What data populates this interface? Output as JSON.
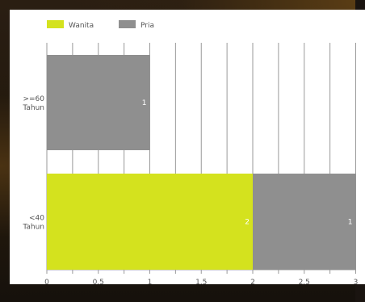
{
  "chart_data": {
    "type": "bar",
    "orientation": "horizontal",
    "stacked": true,
    "categories": [
      ">=60 Tahun",
      "<40 Tahun"
    ],
    "category_lines": [
      [
        ">=60",
        "Tahun"
      ],
      [
        "<40",
        "Tahun"
      ]
    ],
    "series": [
      {
        "name": "Wanita",
        "color": "#d4e21e",
        "values": [
          0,
          2
        ],
        "labels": [
          "",
          "2"
        ]
      },
      {
        "name": "Pria",
        "color": "#8f8f8f",
        "values": [
          1,
          1
        ],
        "labels": [
          "1",
          "1"
        ]
      }
    ],
    "x_ticks": [
      "0",
      "0.5",
      "1",
      "1.5",
      "2",
      "2.5",
      "3"
    ],
    "x_tick_values": [
      0,
      0.5,
      1,
      1.5,
      2,
      2.5,
      3
    ],
    "xlim": [
      0,
      3
    ],
    "grid": true,
    "legend_position": "top-left",
    "title": "",
    "xlabel": "",
    "ylabel": ""
  }
}
